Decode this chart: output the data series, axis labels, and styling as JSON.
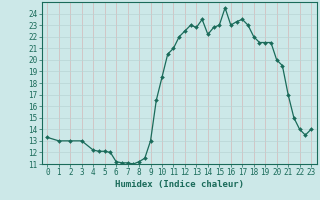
{
  "x": [
    0,
    1,
    2,
    3,
    4,
    4.5,
    5,
    5.5,
    6,
    6.5,
    7,
    7.5,
    8,
    8.5,
    9,
    9.5,
    10,
    10.5,
    11,
    11.5,
    12,
    12.5,
    13,
    13.5,
    14,
    14.5,
    15,
    15.5,
    16,
    16.5,
    17,
    17.5,
    18,
    18.5,
    19,
    19.5,
    20,
    20.5,
    21,
    21.5,
    22,
    22.5,
    23
  ],
  "y": [
    13.3,
    13.0,
    13.0,
    13.0,
    12.2,
    12.1,
    12.1,
    12.0,
    11.2,
    11.1,
    11.1,
    11.0,
    11.2,
    11.5,
    13.0,
    16.5,
    18.5,
    20.5,
    21.0,
    22.0,
    22.5,
    23.0,
    22.8,
    23.5,
    22.2,
    22.8,
    23.0,
    24.5,
    23.0,
    23.3,
    23.5,
    23.0,
    22.0,
    21.5,
    21.5,
    21.5,
    20.0,
    19.5,
    17.0,
    15.0,
    14.0,
    13.5,
    14.0
  ],
  "xlabel": "Humidex (Indice chaleur)",
  "ylim": [
    11,
    25
  ],
  "xlim": [
    -0.5,
    23.5
  ],
  "yticks": [
    11,
    12,
    13,
    14,
    15,
    16,
    17,
    18,
    19,
    20,
    21,
    22,
    23,
    24
  ],
  "xticks": [
    0,
    1,
    2,
    3,
    4,
    5,
    6,
    7,
    8,
    9,
    10,
    11,
    12,
    13,
    14,
    15,
    16,
    17,
    18,
    19,
    20,
    21,
    22,
    23
  ],
  "line_color": "#1a6b5a",
  "marker_color": "#1a6b5a",
  "bg_color": "#cce8e8",
  "grid_color_v": "#d4b8b8",
  "grid_color_h": "#b8d4d4"
}
